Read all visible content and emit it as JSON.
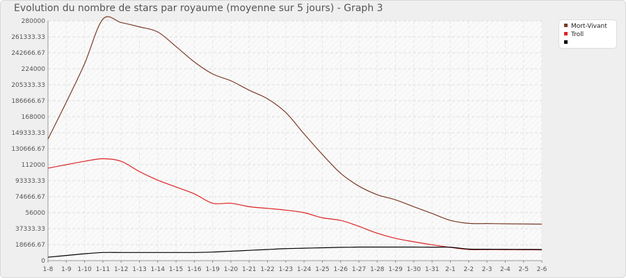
{
  "chart_data": {
    "type": "line",
    "title": "Evolution du nombre de stars par royaume (moyenne sur 5 jours) - Graph 3",
    "xlabel": "",
    "ylabel": "",
    "ylim": [
      0,
      280000
    ],
    "yticks": [
      "0",
      "18666.67",
      "37333.33",
      "56000",
      "74666.67",
      "93333.33",
      "112000",
      "130666.67",
      "149333.33",
      "168000",
      "186666.67",
      "205333.33",
      "224000",
      "242666.67",
      "261333.33",
      "280000"
    ],
    "categories": [
      "1-8",
      "1-9",
      "1-10",
      "1-11",
      "1-12",
      "1-13",
      "1-14",
      "1-15",
      "1-16",
      "1-19",
      "1-20",
      "1-21",
      "1-22",
      "1-23",
      "1-24",
      "1-25",
      "1-26",
      "1-27",
      "1-28",
      "1-29",
      "1-30",
      "1-31",
      "2-1",
      "2-2",
      "2-3",
      "2-4",
      "2-5",
      "2-6"
    ],
    "grid": true,
    "legend_position": "top-right",
    "series": [
      {
        "name": "Mort-Vivant",
        "color": "#7a3a26",
        "values": [
          142000,
          185000,
          230000,
          282000,
          278000,
          273000,
          267000,
          250000,
          232000,
          218000,
          210000,
          199000,
          189000,
          173000,
          148000,
          124000,
          102000,
          87000,
          77000,
          71000,
          63000,
          55000,
          47000,
          43500,
          43300,
          43000,
          42800,
          42600
        ]
      },
      {
        "name": "Troll",
        "color": "#dd2222",
        "values": [
          108000,
          112000,
          116000,
          119000,
          116000,
          104000,
          94000,
          86000,
          78000,
          67000,
          67000,
          63000,
          61000,
          59000,
          56000,
          50000,
          47000,
          40000,
          32000,
          26000,
          22000,
          18500,
          15500,
          13000,
          12900,
          12800,
          12700,
          12600
        ]
      },
      {
        "name": "",
        "color": "#000000",
        "values": [
          4000,
          6000,
          8000,
          9500,
          9500,
          9500,
          9500,
          9500,
          9500,
          10000,
          11000,
          12000,
          13000,
          14000,
          14500,
          15000,
          15500,
          15800,
          15800,
          15800,
          15800,
          15700,
          15600,
          13500,
          13300,
          13200,
          13100,
          13000
        ]
      }
    ]
  }
}
